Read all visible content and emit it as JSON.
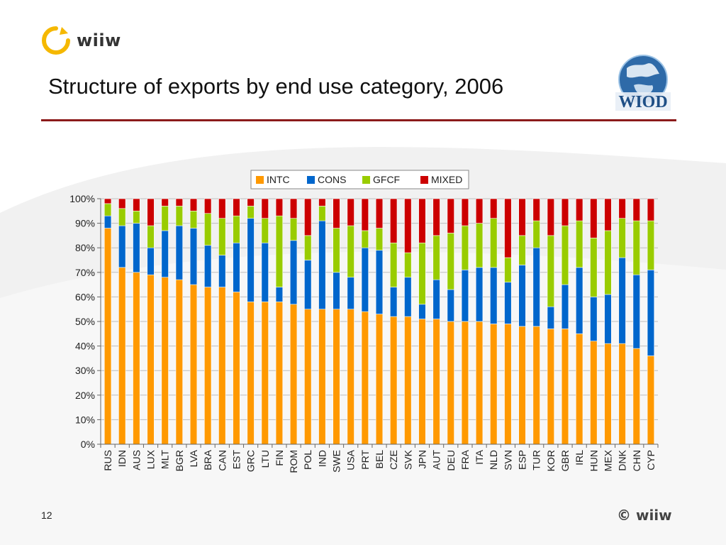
{
  "slide": {
    "title": "Structure of exports by end use category, 2006",
    "logo_text": "wiiw",
    "wiod_logo_text": "WIOD",
    "page_number": "12",
    "copyright": "© wiiw"
  },
  "colors": {
    "INTC": "#ff9900",
    "CONS": "#0066cc",
    "GFCF": "#99cc00",
    "MIXED": "#cc0000",
    "title_rule": "#8b1a1a",
    "logo_yellow": "#f5b800"
  },
  "chart_data": {
    "type": "bar",
    "stacked": true,
    "percent": true,
    "title": "",
    "xlabel": "",
    "ylabel": "",
    "ylim": [
      0,
      100
    ],
    "yticks": [
      "0%",
      "10%",
      "20%",
      "30%",
      "40%",
      "50%",
      "60%",
      "70%",
      "80%",
      "90%",
      "100%"
    ],
    "legend": {
      "position": "top-center",
      "entries": [
        "INTC",
        "CONS",
        "GFCF",
        "MIXED"
      ]
    },
    "categories": [
      "RUS",
      "IDN",
      "AUS",
      "LUX",
      "MLT",
      "BGR",
      "LVA",
      "BRA",
      "CAN",
      "EST",
      "GRC",
      "LTU",
      "FIN",
      "ROM",
      "POL",
      "IND",
      "SWE",
      "USA",
      "PRT",
      "BEL",
      "CZE",
      "SVK",
      "JPN",
      "AUT",
      "DEU",
      "FRA",
      "ITA",
      "NLD",
      "SVN",
      "ESP",
      "TUR",
      "KOR",
      "GBR",
      "IRL",
      "HUN",
      "MEX",
      "DNK",
      "CHN",
      "CYP"
    ],
    "series": [
      {
        "name": "INTC",
        "values": [
          88,
          72,
          70,
          69,
          68,
          67,
          65,
          64,
          64,
          62,
          58,
          58,
          58,
          57,
          55,
          55,
          55,
          55,
          54,
          53,
          52,
          52,
          51,
          51,
          50,
          50,
          50,
          49,
          49,
          48,
          48,
          47,
          47,
          45,
          42,
          41,
          41,
          39,
          36
        ]
      },
      {
        "name": "CONS",
        "values": [
          5,
          17,
          20,
          11,
          19,
          22,
          23,
          17,
          13,
          20,
          34,
          24,
          6,
          26,
          20,
          36,
          15,
          13,
          26,
          26,
          12,
          16,
          6,
          16,
          13,
          21,
          22,
          23,
          17,
          25,
          32,
          9,
          18,
          27,
          18,
          20,
          35,
          30,
          35
        ]
      },
      {
        "name": "GFCF",
        "values": [
          5,
          7,
          5,
          9,
          10,
          8,
          7,
          13,
          15,
          11,
          5,
          10,
          29,
          9,
          10,
          6,
          18,
          21,
          7,
          9,
          18,
          10,
          25,
          18,
          23,
          18,
          18,
          20,
          10,
          12,
          11,
          29,
          24,
          19,
          24,
          26,
          16,
          22,
          20
        ]
      },
      {
        "name": "MIXED",
        "values": [
          2,
          4,
          5,
          11,
          3,
          3,
          5,
          6,
          8,
          7,
          3,
          8,
          7,
          8,
          15,
          3,
          12,
          11,
          13,
          12,
          18,
          22,
          18,
          15,
          14,
          11,
          10,
          8,
          24,
          15,
          9,
          15,
          11,
          9,
          16,
          13,
          8,
          9,
          9
        ]
      }
    ]
  }
}
